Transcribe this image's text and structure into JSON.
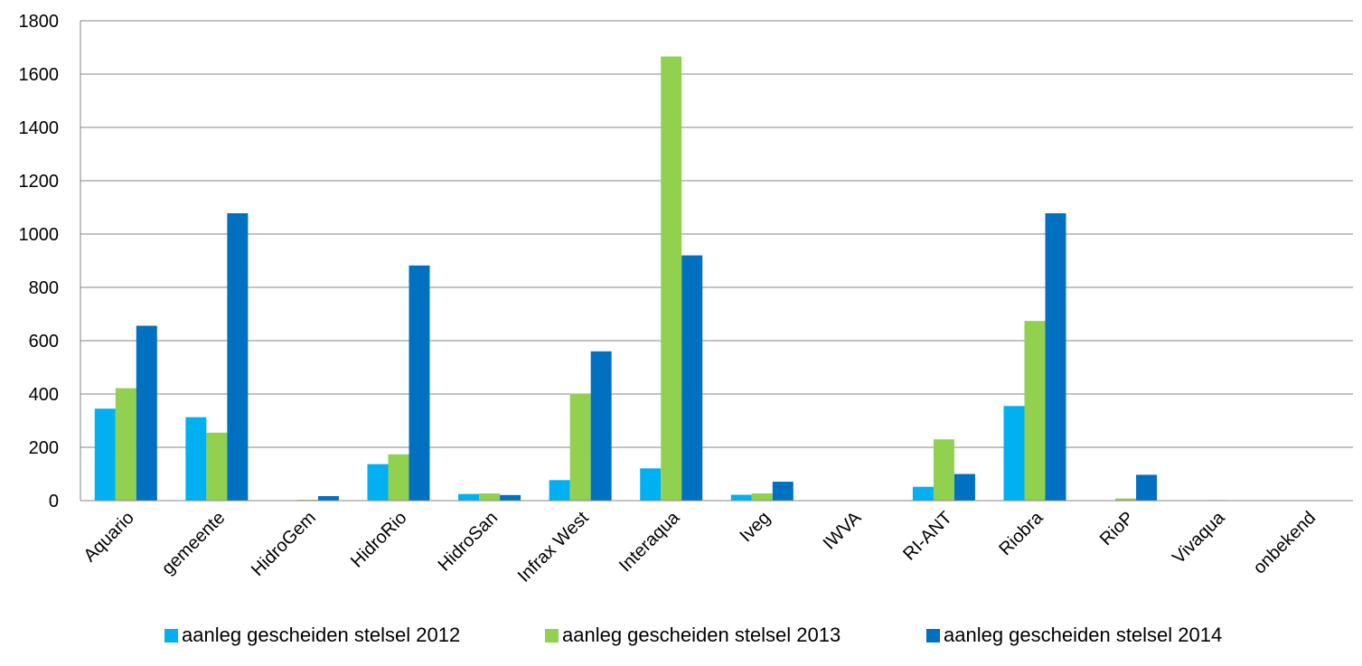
{
  "chart_data": {
    "type": "bar",
    "categories": [
      "Aquario",
      "gemeente",
      "HidroGem",
      "HidroRio",
      "HidroSan",
      "Infrax West",
      "Interaqua",
      "Iveg",
      "IWVA",
      "RI-ANT",
      "Riobra",
      "RioP",
      "Vivaqua",
      "onbekend"
    ],
    "series": [
      {
        "name": "aanleg gescheiden stelsel 2012",
        "color": "#00b0f0",
        "values": [
          345,
          313,
          0,
          137,
          25,
          77,
          121,
          22,
          0,
          52,
          355,
          0,
          0,
          0
        ]
      },
      {
        "name": "aanleg gescheiden stelsel 2013",
        "color": "#92d050",
        "values": [
          422,
          255,
          3,
          174,
          27,
          402,
          1666,
          27,
          0,
          230,
          674,
          8,
          2,
          0
        ]
      },
      {
        "name": "aanleg gescheiden stelsel 2014",
        "color": "#0070c0",
        "values": [
          656,
          1078,
          17,
          882,
          21,
          560,
          920,
          71,
          0,
          100,
          1078,
          97,
          0,
          0
        ]
      }
    ],
    "ylim": [
      0,
      1800
    ],
    "yticks": [
      0,
      200,
      400,
      600,
      800,
      1000,
      1200,
      1400,
      1600,
      1800
    ],
    "grid": true,
    "legend": "bottom"
  }
}
